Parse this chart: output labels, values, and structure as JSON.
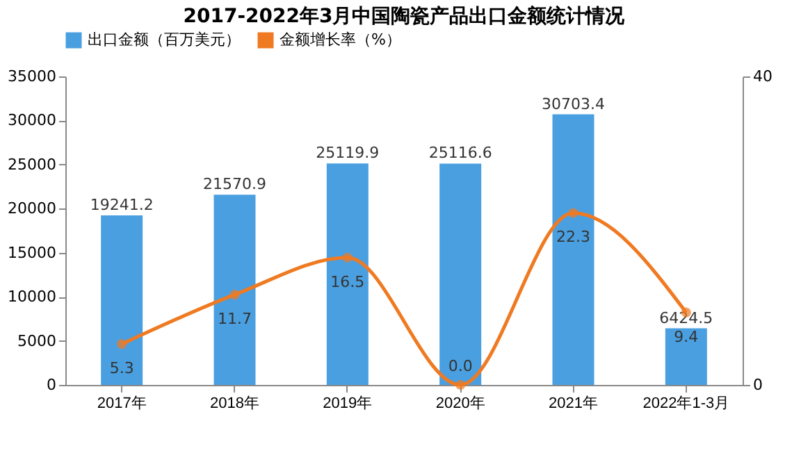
{
  "chart_data": {
    "type": "bar",
    "title": "2017-2022年3月中国陶瓷产品出口金额统计情况",
    "categories": [
      "2017年",
      "2018年",
      "2019年",
      "2020年",
      "2021年",
      "2022年1-3月"
    ],
    "series": [
      {
        "name": "出口金额（百万美元）",
        "color": "#4a9fe0",
        "values": [
          19241.2,
          21570.9,
          25119.9,
          25116.6,
          30703.4,
          6424.5
        ]
      },
      {
        "name": "金额增长率（%）",
        "type": "line",
        "axis": "y2",
        "color": "#ef7a22",
        "values": [
          5.3,
          11.7,
          16.5,
          0.0,
          22.3,
          9.4
        ],
        "value_labels": [
          "5.3",
          "11.7",
          "16.5",
          "0.0",
          "22.3",
          "9.4"
        ]
      }
    ],
    "ylim": [
      0,
      35000
    ],
    "yticks": [
      0,
      5000,
      10000,
      15000,
      20000,
      25000,
      30000,
      35000
    ],
    "y2lim": [
      0,
      40
    ],
    "y2ticks": [
      0,
      40
    ],
    "data_labels": true,
    "legend": "top",
    "grid": false,
    "marker": "circle",
    "line_style": "solid"
  }
}
